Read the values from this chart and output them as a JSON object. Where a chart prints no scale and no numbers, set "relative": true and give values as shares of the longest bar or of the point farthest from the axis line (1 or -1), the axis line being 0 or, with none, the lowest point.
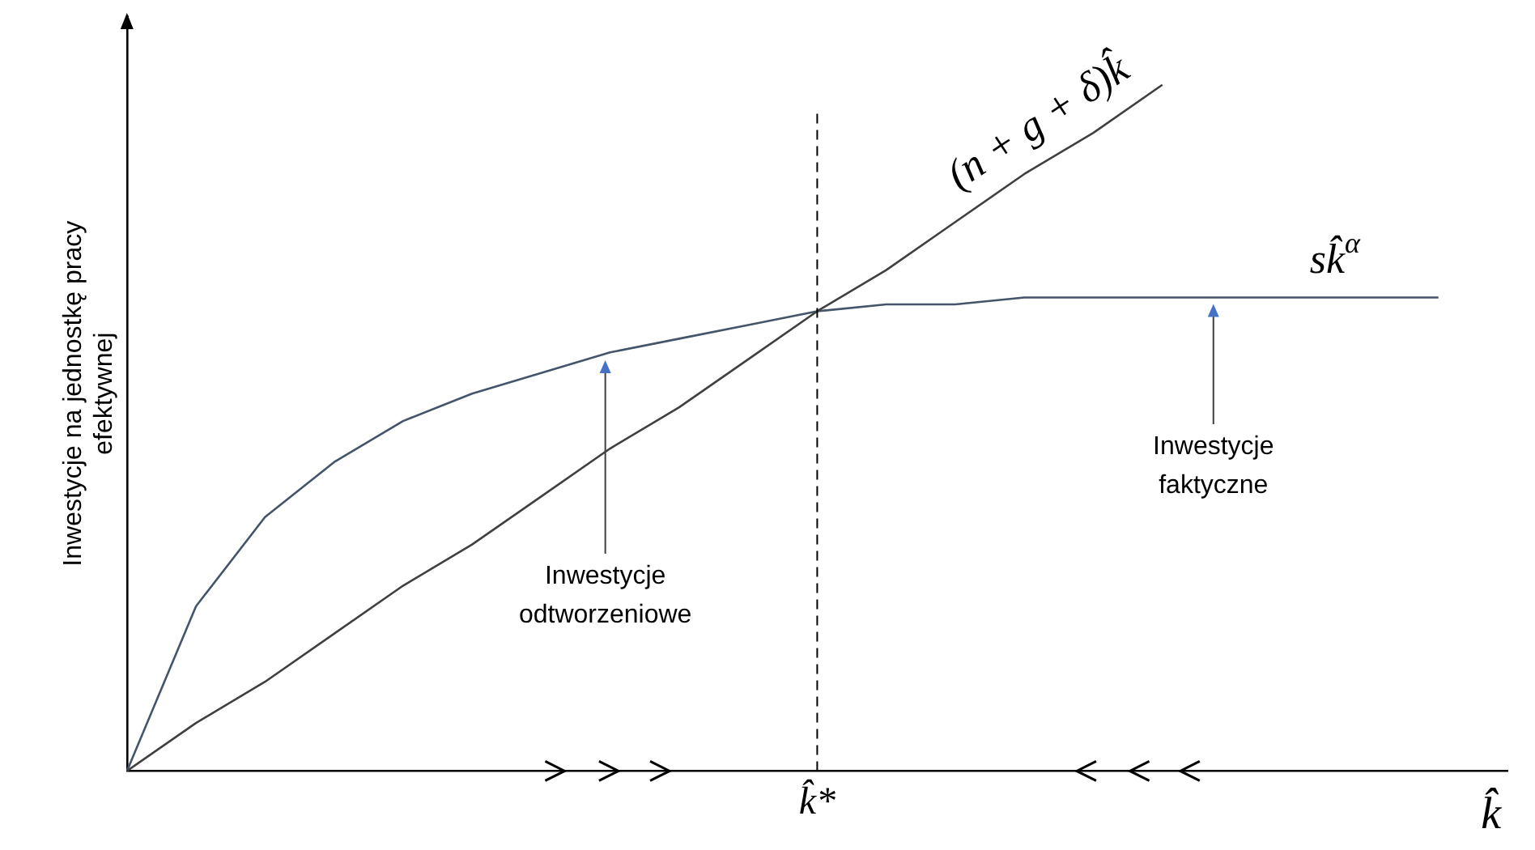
{
  "chart_data": {
    "type": "line",
    "relative": true,
    "xlabel": "k̂",
    "ylabel": "Inwestycje na jednostkę pracy efektywnej",
    "categories": [
      null,
      null,
      null,
      null,
      null,
      null,
      null,
      null,
      null,
      null,
      null,
      null,
      null,
      null,
      null,
      null,
      null,
      null,
      null,
      null,
      null
    ],
    "series": [
      {
        "name": "(n + g + δ)k̂",
        "color": "#404040",
        "values": [
          0,
          0.07,
          0.13,
          0.2,
          0.27,
          0.33,
          0.4,
          0.47,
          0.53,
          0.6,
          0.67,
          0.73,
          0.8,
          0.87,
          0.93,
          1,
          null,
          null,
          null,
          null,
          null
        ]
      },
      {
        "name": "sk̂$^{α}$",
        "color": "#44546a",
        "values": [
          0,
          0.24,
          0.37,
          0.45,
          0.51,
          0.55,
          0.58,
          0.61,
          0.63,
          0.65,
          0.67,
          0.68,
          0.68,
          0.69,
          0.69,
          0.69,
          0.69,
          0.69,
          0.69,
          0.69,
          null
        ]
      }
    ],
    "annotations": [
      "Inwestycje odtworzeniowe",
      "Inwestycje faktyczne",
      "k̂*"
    ],
    "legend": false,
    "grid": false,
    "marker": "none",
    "line_style": "solid",
    "tick_labels": "x"
  }
}
